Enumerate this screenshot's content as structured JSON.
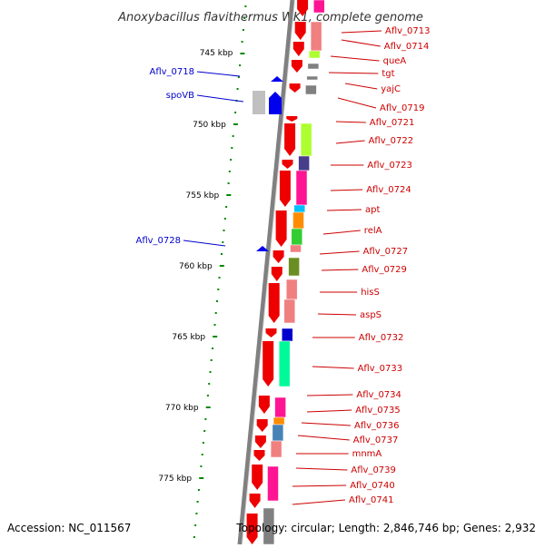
{
  "title": "Anoxybacillus flavithermus WK1, complete genome",
  "accession": "Accession: NC_011567",
  "summary": "Topology: circular; Length: 2,846,746 bp; Genes: 2,932",
  "scale_labels": [
    "745 kbp",
    "750 kbp",
    "755 kbp",
    "760 kbp",
    "765 kbp",
    "770 kbp",
    "775 kbp"
  ],
  "genes_right": [
    "Aflv_0713",
    "Aflv_0714",
    "queA",
    "tgt",
    "yajC",
    "Aflv_0719",
    "Aflv_0721",
    "Aflv_0722",
    "Aflv_0723",
    "Aflv_0724",
    "apt",
    "relA",
    "Aflv_0727",
    "Aflv_0729",
    "hisS",
    "aspS",
    "Aflv_0732",
    "Aflv_0733",
    "Aflv_0734",
    "Aflv_0735",
    "Aflv_0736",
    "Aflv_0737",
    "mnmA",
    "Aflv_0739",
    "Aflv_0740",
    "Aflv_0741"
  ],
  "genes_left": [
    "Aflv_0718",
    "spoVB",
    "Aflv_0728"
  ],
  "colors": {
    "forward_strand": "#ee0000",
    "reverse_strand": "#0000ee",
    "backbone": "#808080",
    "label_forward": "#cc0000",
    "label_reverse": "#0000cc",
    "tick": "#008800",
    "cog_pink": "#ff1493",
    "cog_salmon": "#f08080",
    "cog_lime": "#adff2f",
    "cog_indigo": "#483d8b",
    "cog_cyan": "#00bfff",
    "cog_orange": "#ff8c00",
    "cog_green": "#32cd32",
    "cog_olive": "#6b8e23",
    "cog_blue": "#0000cd",
    "cog_springgreen": "#00fa9a",
    "cog_steelblue": "#4682b4",
    "cog_gray": "#808080"
  }
}
